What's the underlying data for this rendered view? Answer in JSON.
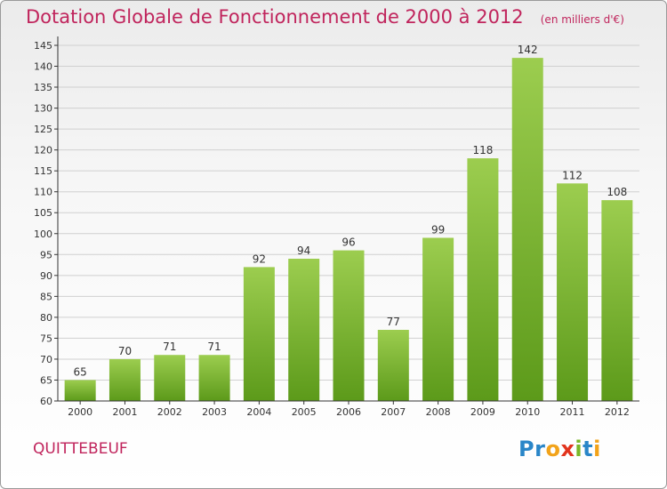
{
  "header": {
    "title": "Dotation Globale de Fonctionnement de 2000 à 2012",
    "subtitle": "(en milliers d'€)"
  },
  "footer": {
    "commune": "QUITTEBEUF",
    "logo_letters": [
      "P",
      "r",
      "o",
      "x",
      "i",
      "t",
      "i"
    ],
    "logo_colors": [
      "#2a86c8",
      "#2a86c8",
      "#f2a31a",
      "#e2341d",
      "#7ab827",
      "#2a86c8",
      "#f2a31a"
    ]
  },
  "colors": {
    "bar_top": "#9ccd4f",
    "bar_bottom": "#5c9a1a",
    "axis": "#333333",
    "grid": "#d0d0d0",
    "title": "#c0245c"
  },
  "chart_data": {
    "type": "bar",
    "categories": [
      "2000",
      "2001",
      "2002",
      "2003",
      "2004",
      "2005",
      "2006",
      "2007",
      "2008",
      "2009",
      "2010",
      "2011",
      "2012"
    ],
    "values": [
      65,
      70,
      71,
      71,
      92,
      94,
      96,
      77,
      99,
      118,
      142,
      112,
      108
    ],
    "ylim": [
      60,
      145
    ],
    "yticks": [
      60,
      65,
      70,
      75,
      80,
      85,
      90,
      95,
      100,
      105,
      110,
      115,
      120,
      125,
      130,
      135,
      140,
      145
    ],
    "grid": "horizontal",
    "data_labels": true
  }
}
